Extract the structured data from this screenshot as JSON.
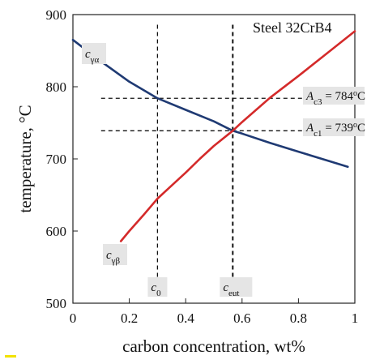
{
  "chart_data": {
    "type": "line",
    "title": "Steel 32CrB4",
    "xlabel": "carbon concentration, wt%",
    "ylabel": "temperature, °C",
    "xlim": [
      0,
      1
    ],
    "ylim": [
      500,
      900
    ],
    "x_ticks": [
      "0",
      "0.2",
      "0.4",
      "0.6",
      "0.8",
      "1"
    ],
    "y_ticks": [
      "500",
      "600",
      "700",
      "800",
      "900"
    ],
    "grid": false,
    "series": [
      {
        "name": "cγα",
        "color": "#1f3a73",
        "x": [
          0,
          0.1,
          0.2,
          0.3,
          0.4,
          0.5,
          0.567,
          0.6,
          0.7,
          0.8,
          0.9,
          0.975
        ],
        "y": [
          865,
          835,
          807,
          784,
          768,
          752,
          739,
          735,
          722,
          710,
          698,
          689
        ]
      },
      {
        "name": "cγβ",
        "color": "#d42a2a",
        "x": [
          0.17,
          0.2,
          0.25,
          0.3,
          0.35,
          0.4,
          0.45,
          0.5,
          0.567,
          0.6,
          0.7,
          0.8,
          0.9,
          1.0
        ],
        "y": [
          586,
          600,
          622,
          645,
          663,
          681,
          700,
          718,
          739,
          751,
          785,
          815,
          846,
          877
        ]
      }
    ],
    "reference_lines": {
      "horizontal": [
        {
          "y": 784,
          "label_main": "A",
          "label_sub": "c3",
          "label_rest": " = 784",
          "label_sup": "o",
          "label_unit": "C"
        },
        {
          "y": 739,
          "label_main": "A",
          "label_sub": "c1",
          "label_rest": " = 739",
          "label_sup": "o",
          "label_unit": "C"
        }
      ],
      "vertical": [
        {
          "x": 0.3,
          "label_main": "c",
          "label_sub": "0"
        },
        {
          "x": 0.567,
          "label_main": "c",
          "label_sub": "eut"
        }
      ]
    },
    "curve_labels": [
      {
        "main": "c",
        "sub": "γα"
      },
      {
        "main": "c",
        "sub": "γβ"
      }
    ]
  }
}
